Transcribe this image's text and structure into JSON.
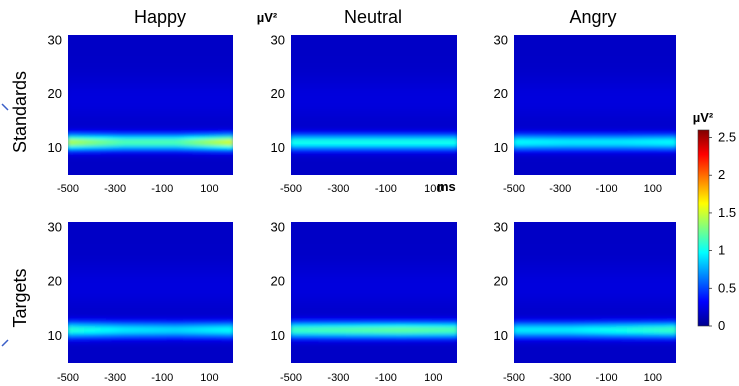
{
  "chart_data": {
    "type": "heatmap",
    "column_titles": [
      "Happy",
      "Neutral",
      "Angry"
    ],
    "row_labels": [
      "Standards",
      "Targets"
    ],
    "power_unit": "µV²",
    "time_unit": "ms",
    "x_ticks": [
      "-500",
      "-300",
      "-100",
      "100"
    ],
    "x_tick_values": [
      -500,
      -300,
      -100,
      100
    ],
    "xlim": [
      -500,
      200
    ],
    "y_ticks": [
      "10",
      "20",
      "30"
    ],
    "y_tick_values": [
      10,
      20,
      30
    ],
    "ylim": [
      5,
      31
    ],
    "colorbar": {
      "label": "µV²",
      "ticks": [
        "2.5",
        "2",
        "1.5",
        "1",
        "0.5",
        "0"
      ],
      "tick_values": [
        2.5,
        2,
        1.5,
        1,
        0.5,
        0
      ],
      "range": [
        0,
        2.6
      ],
      "colormap": "jet"
    },
    "panels": [
      {
        "condition": "Happy",
        "trial": "Standards",
        "peak_freq": 11,
        "band_power": [
          1.45,
          1.2,
          1.2,
          1.55
        ]
      },
      {
        "condition": "Neutral",
        "trial": "Standards",
        "peak_freq": 11,
        "band_power": [
          1.05,
          1.05,
          1.05,
          1.05
        ]
      },
      {
        "condition": "Angry",
        "trial": "Standards",
        "peak_freq": 11,
        "band_power": [
          1.0,
          0.95,
          0.95,
          1.0
        ]
      },
      {
        "condition": "Happy",
        "trial": "Targets",
        "peak_freq": 11,
        "band_power": [
          1.1,
          0.95,
          0.9,
          1.0
        ]
      },
      {
        "condition": "Neutral",
        "trial": "Targets",
        "peak_freq": 11,
        "band_power": [
          1.15,
          1.2,
          1.25,
          1.2
        ]
      },
      {
        "condition": "Angry",
        "trial": "Targets",
        "peak_freq": 11,
        "band_power": [
          0.95,
          0.95,
          1.05,
          1.15
        ]
      }
    ]
  }
}
